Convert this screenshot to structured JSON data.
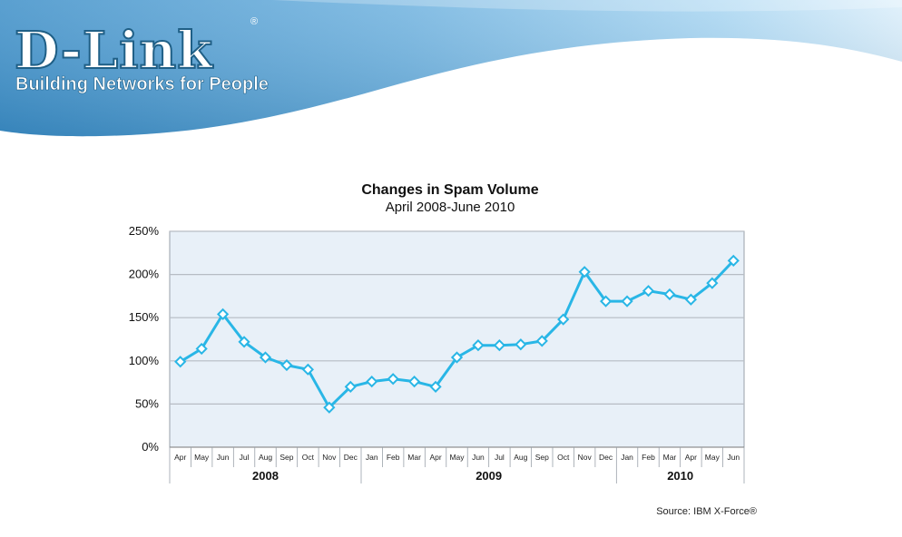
{
  "header": {
    "brand": "D-Link",
    "registered_mark": "®",
    "tagline": "Building Networks for People"
  },
  "colors": {
    "banner_light": "#dceffb",
    "banner_mid": "#8fc6ea",
    "banner_dark": "#3d8fc8",
    "plot_background": "#e8f0f8",
    "line": "#29b6e6",
    "grid": "#b6bcc4"
  },
  "chart_data": {
    "type": "line",
    "title": "Changes in Spam Volume",
    "subtitle": "April 2008-June 2010",
    "y_tick_labels": [
      "0%",
      "50%",
      "100%",
      "150%",
      "200%",
      "250%"
    ],
    "ylim": [
      0,
      250
    ],
    "grid": true,
    "categories": [
      "Apr",
      "May",
      "Jun",
      "Jul",
      "Aug",
      "Sep",
      "Oct",
      "Nov",
      "Dec",
      "Jan",
      "Feb",
      "Mar",
      "Apr",
      "May",
      "Jun",
      "Jul",
      "Aug",
      "Sep",
      "Oct",
      "Nov",
      "Dec",
      "Jan",
      "Feb",
      "Mar",
      "Apr",
      "May",
      "Jun"
    ],
    "years": [
      {
        "label": "2008",
        "start": 0,
        "end": 8
      },
      {
        "label": "2009",
        "start": 9,
        "end": 20
      },
      {
        "label": "2010",
        "start": 21,
        "end": 26
      }
    ],
    "series": [
      {
        "values": [
          99,
          114,
          154,
          122,
          104,
          95,
          90,
          46,
          70,
          76,
          79,
          76,
          70,
          104,
          118,
          118,
          119,
          123,
          148,
          203,
          169,
          169,
          181,
          177,
          171,
          190,
          216
        ]
      }
    ],
    "source": "Source: IBM X-Force®"
  }
}
